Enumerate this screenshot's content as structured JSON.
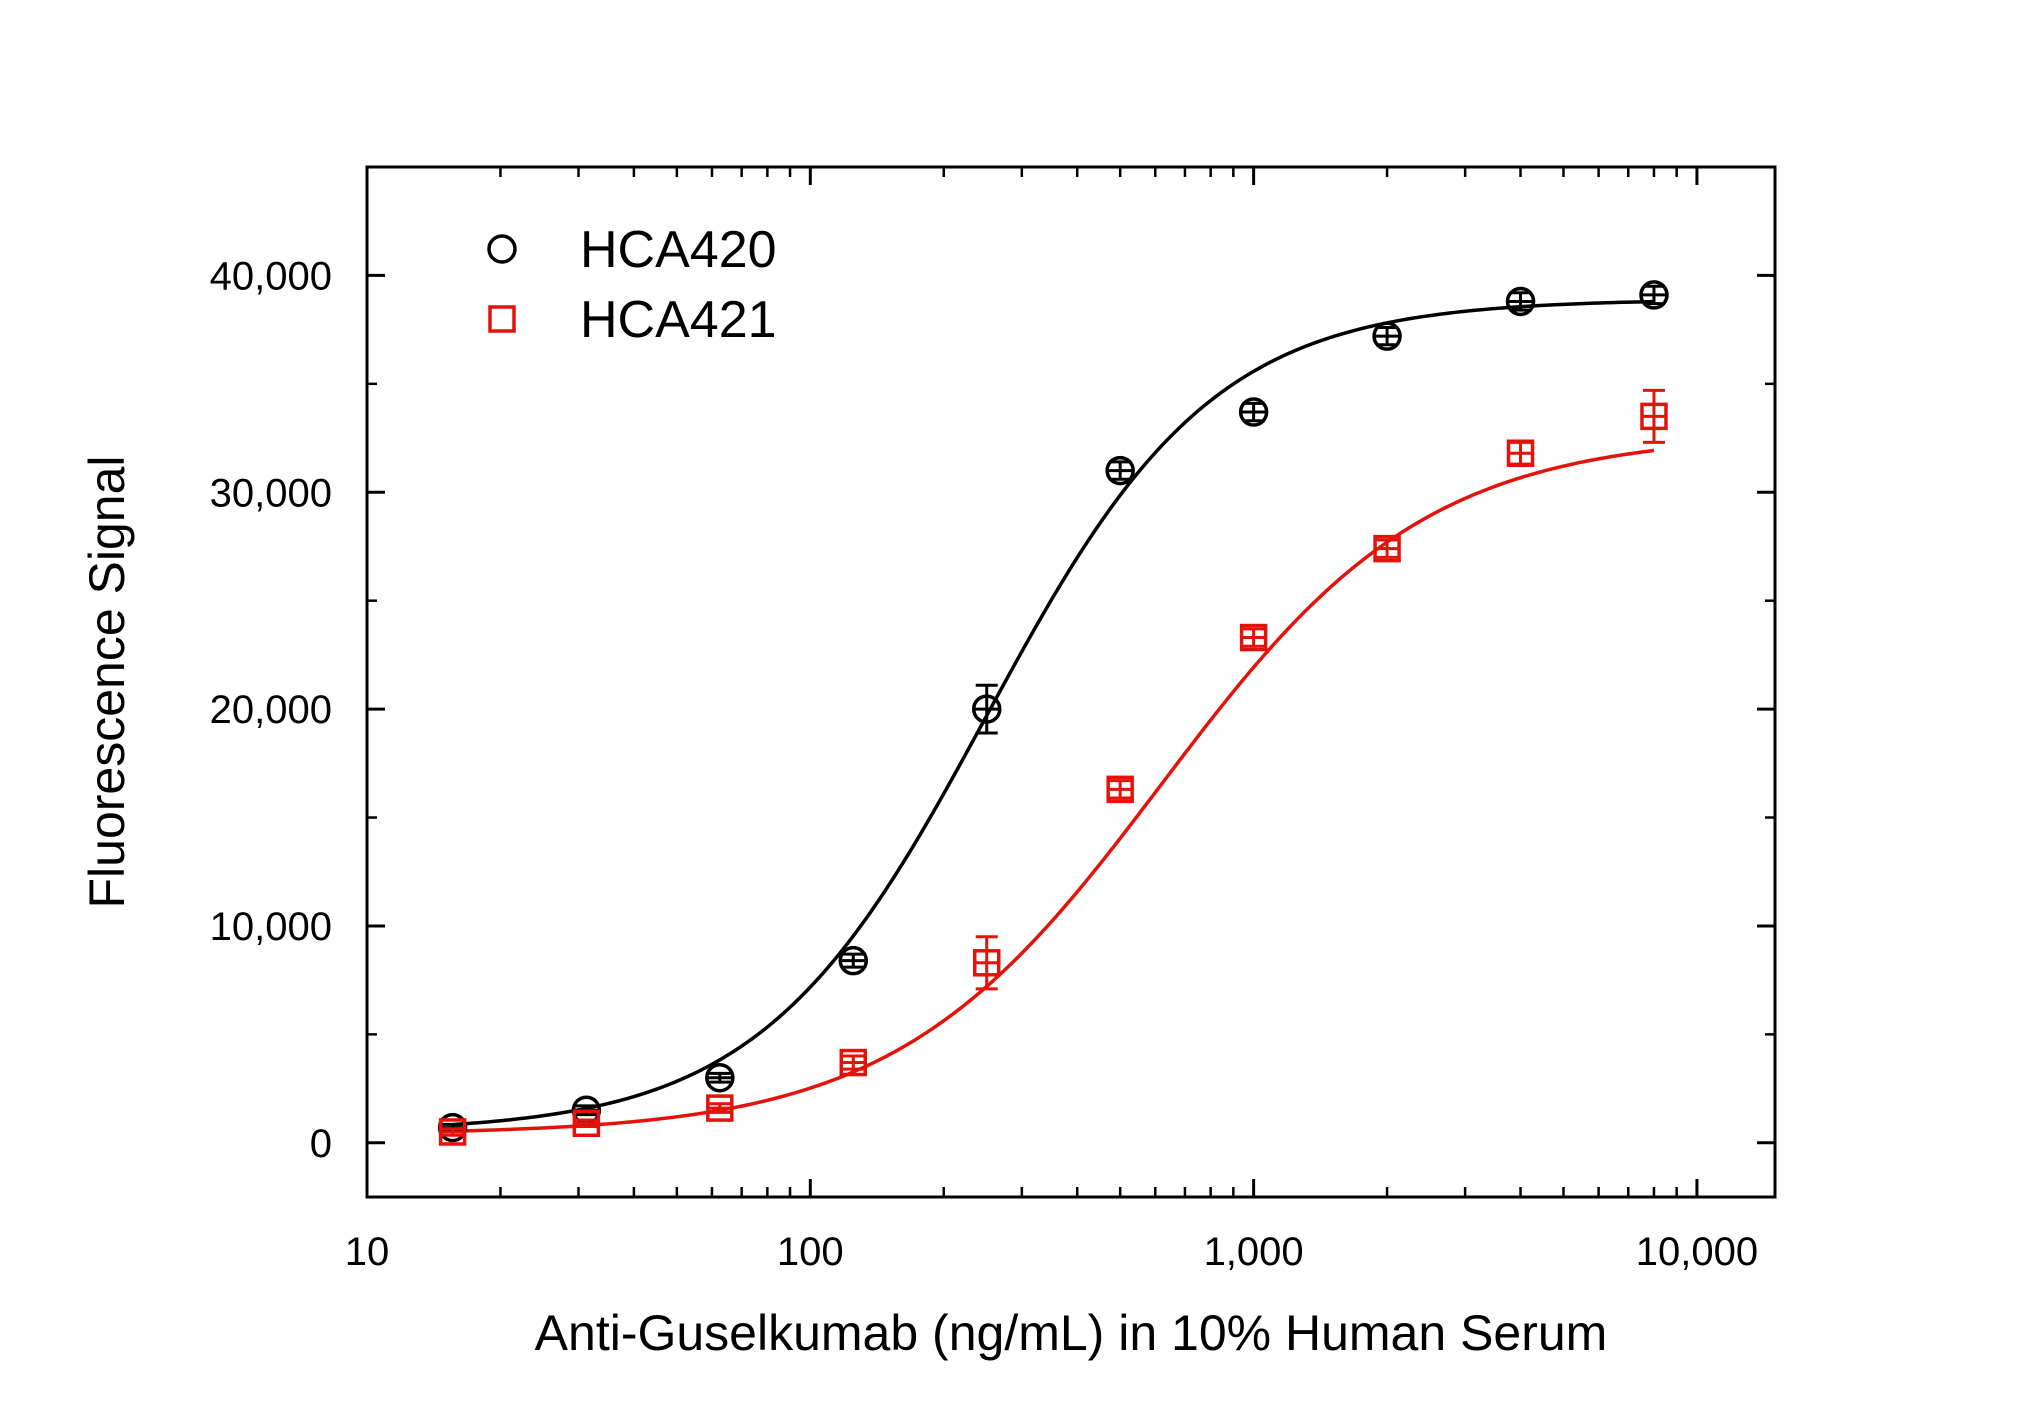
{
  "chart_data": {
    "type": "scatter",
    "xlabel": "Anti-Guselkumab (ng/mL) in 10% Human Serum",
    "ylabel": "Fluorescence Signal",
    "xscale": "log",
    "xlim": [
      10,
      15000
    ],
    "ylim": [
      -2500,
      45000
    ],
    "xticks": [
      10,
      100,
      1000,
      10000
    ],
    "xtick_labels": [
      "10",
      "100",
      "1,000",
      "10,000"
    ],
    "yticks": [
      0,
      10000,
      20000,
      30000,
      40000
    ],
    "ytick_labels": [
      "0",
      "10,000",
      "20,000",
      "30,000",
      "40,000"
    ],
    "grid": false,
    "legend_position": "top-left",
    "series": [
      {
        "name": "HCA420",
        "color": "#000000",
        "marker": "circle",
        "x": [
          15.6,
          31.25,
          62.5,
          125,
          250,
          500,
          1000,
          2000,
          4000,
          8000
        ],
        "y": [
          700,
          1500,
          3000,
          8400,
          20000,
          31000,
          33700,
          37200,
          38800,
          39100
        ],
        "error": [
          150,
          200,
          200,
          300,
          1100,
          400,
          400,
          400,
          400,
          400
        ],
        "fit": {
          "bottom": 500,
          "top": 38900,
          "ec50": 250,
          "hill": 1.7
        }
      },
      {
        "name": "HCA421",
        "color": "#e3120b",
        "marker": "square",
        "x": [
          15.6,
          31.25,
          62.5,
          125,
          250,
          500,
          1000,
          2000,
          4000,
          8000
        ],
        "y": [
          500,
          900,
          1600,
          3700,
          8300,
          16300,
          23300,
          27400,
          31800,
          33500
        ],
        "error": [
          150,
          150,
          200,
          300,
          1200,
          400,
          400,
          400,
          500,
          1200
        ],
        "fit": {
          "bottom": 380,
          "top": 32700,
          "ec50": 620,
          "hill": 1.45
        }
      }
    ]
  }
}
